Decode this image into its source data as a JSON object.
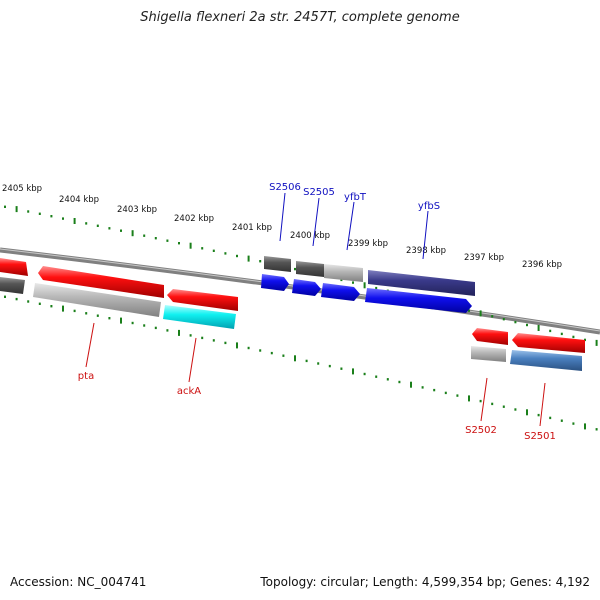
{
  "title": "Shigella flexneri 2a str. 2457T, complete genome",
  "footer": {
    "accession": "Accession: NC_004741",
    "stats": "Topology: circular; Length: 4,599,354 bp; Genes: 4,192"
  },
  "scale_labels": [
    "2405 kbp",
    "2404 kbp",
    "2403 kbp",
    "2402 kbp",
    "2401 kbp",
    "2400 kbp",
    "2399 kbp",
    "2398 kbp",
    "2397 kbp",
    "2396 kbp"
  ],
  "gene_labels_top": [
    "S2506",
    "S2505",
    "yfbT",
    "yfbS"
  ],
  "gene_labels_bottom": [
    "pta",
    "ackA",
    "S2502",
    "S2501"
  ],
  "colors": {
    "label_top": "#1010c0",
    "label_bottom": "#cc1010",
    "tick": "#1a7f1a",
    "red": "#ff1010",
    "gray": "#b0b0b0",
    "dark_gray": "#555555",
    "blue": "#1010ee",
    "navy": "#3a3a8a",
    "cyan": "#10f0f0",
    "steel": "#4a80c0",
    "backbone": "#808080"
  }
}
